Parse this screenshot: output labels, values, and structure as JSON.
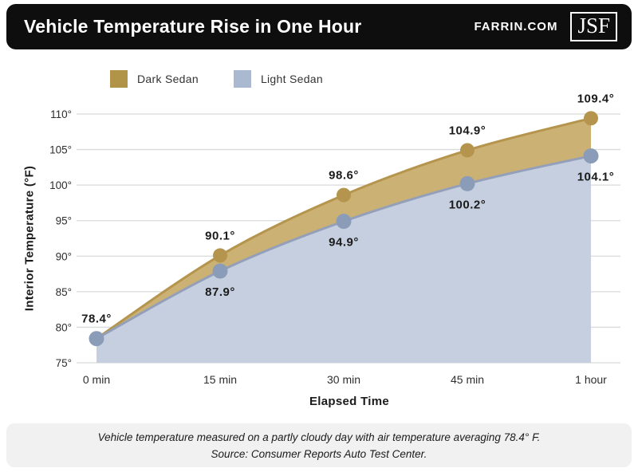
{
  "header": {
    "title": "Vehicle Temperature Rise in One Hour",
    "site": "FARRIN.COM",
    "logo": "JSF"
  },
  "legend": [
    {
      "label": "Dark Sedan",
      "color": "#b29448"
    },
    {
      "label": "Light Sedan",
      "color": "#abb9d0"
    }
  ],
  "chart_data": {
    "type": "area",
    "x_categories": [
      "0 min",
      "15 min",
      "30 min",
      "45 min",
      "1 hour"
    ],
    "series": [
      {
        "name": "Dark Sedan",
        "values": [
          78.4,
          90.1,
          98.6,
          104.9,
          109.4
        ],
        "point_labels": [
          "78.4°",
          "90.1°",
          "98.6°",
          "104.9°",
          "109.4°"
        ],
        "label_side": "above",
        "fill": "#cbb173",
        "stroke": "#b5954d",
        "dot": "#b5954d"
      },
      {
        "name": "Light Sedan",
        "values": [
          78.4,
          87.9,
          94.9,
          100.2,
          104.1
        ],
        "point_labels": [
          null,
          "87.9°",
          "94.9°",
          "100.2°",
          "104.1°"
        ],
        "label_side": "below",
        "fill": "#c5cfdf",
        "stroke": "#94a0ba",
        "dot": "#8b9cb9"
      }
    ],
    "title": "Vehicle Temperature Rise in One Hour",
    "xlabel": "Elapsed Time",
    "ylabel": "Interior Temperature (°F)",
    "ylim": [
      75,
      110
    ],
    "ytick_step": 5,
    "ytick_suffix": "°",
    "grid": true,
    "grid_color": "#d8dadb",
    "tick_color": "#2e2e2e",
    "point_label_color": "#1b1b1b",
    "legend_position": "top-left"
  },
  "footer": {
    "line1": "Vehicle temperature measured on a partly cloudy day with air temperature averaging 78.4° F.",
    "line2": "Source: Consumer Reports Auto Test Center."
  }
}
